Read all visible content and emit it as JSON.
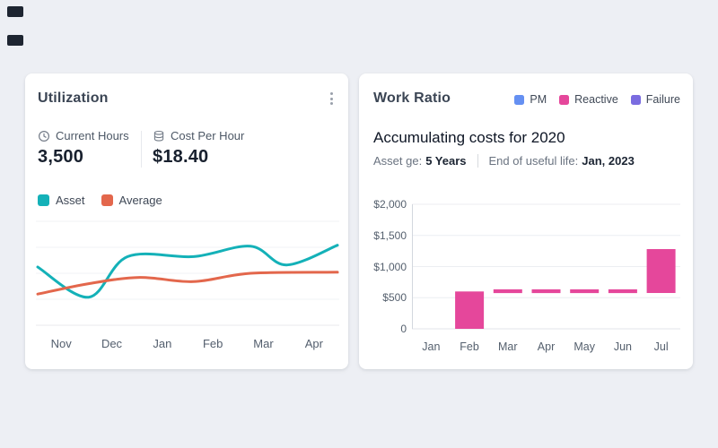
{
  "background": "#edeff4",
  "decorations": {
    "corner_marker_color": "#1e2531"
  },
  "utilization_card": {
    "title": "Utilization",
    "menu_icon": "kebab-vertical",
    "metrics": [
      {
        "icon": "clock-icon",
        "label": "Current Hours",
        "value": "3,500"
      },
      {
        "icon": "coins-icon",
        "label": "Cost Per Hour",
        "value": "$18.40"
      }
    ]
  },
  "work_ratio_card": {
    "title": "Work Ratio",
    "subtitle": "Accumulating costs for 2020",
    "meta": {
      "age_label": "Asset ge:",
      "age_value": "5 Years",
      "eol_label": "End of useful life:",
      "eol_value": "Jan, 2023"
    }
  },
  "chart_data": [
    {
      "id": "utilization-line",
      "type": "line",
      "title": "Utilization",
      "xlabel": "",
      "ylabel": "",
      "x_labels": [
        "Nov",
        "Dec",
        "Jan",
        "Feb",
        "Mar",
        "Apr"
      ],
      "y_axis_shown": false,
      "value_scale": "normalized 0-100 (no y axis labels in chart)",
      "grid": true,
      "legend_position": "top-left",
      "series": [
        {
          "name": "Asset",
          "color": "#14b1b8",
          "points": [
            [
              0,
              56
            ],
            [
              17,
              27
            ],
            [
              30,
              66
            ],
            [
              52,
              66
            ],
            [
              71,
              76
            ],
            [
              83,
              58
            ],
            [
              100,
              77
            ]
          ]
        },
        {
          "name": "Average",
          "color": "#e3674c",
          "points": [
            [
              0,
              30
            ],
            [
              17,
              40
            ],
            [
              34,
              46
            ],
            [
              52,
              42
            ],
            [
              71,
              50
            ],
            [
              100,
              51
            ]
          ]
        }
      ]
    },
    {
      "id": "work-ratio-bars",
      "type": "bar",
      "title": "Accumulating costs for 2020",
      "xlabel": "",
      "ylabel": "",
      "categories": [
        "Jan",
        "Feb",
        "Mar",
        "Apr",
        "May",
        "Jun",
        "Jul"
      ],
      "ylim": [
        0,
        2000
      ],
      "grid": true,
      "legend_position": "top-right",
      "y_ticks": [
        {
          "label": "0",
          "value": 0
        },
        {
          "label": "$500",
          "value": 500
        },
        {
          "label": "$1,000",
          "value": 1000
        },
        {
          "label": "$1,500",
          "value": 1500
        },
        {
          "label": "$2,000",
          "value": 2000
        }
      ],
      "legend": [
        {
          "name": "PM",
          "color": "#6590f2"
        },
        {
          "name": "Reactive",
          "color": "#e5479b"
        },
        {
          "name": "Failure",
          "color": "#7a6ce0"
        }
      ],
      "series": [
        {
          "name": "Reactive",
          "color": "#e5479b",
          "bars": [
            null,
            [
              0,
              600
            ],
            [
              575,
              635
            ],
            [
              575,
              635
            ],
            [
              575,
              635
            ],
            [
              575,
              635
            ],
            [
              575,
              1280
            ]
          ]
        }
      ]
    }
  ]
}
